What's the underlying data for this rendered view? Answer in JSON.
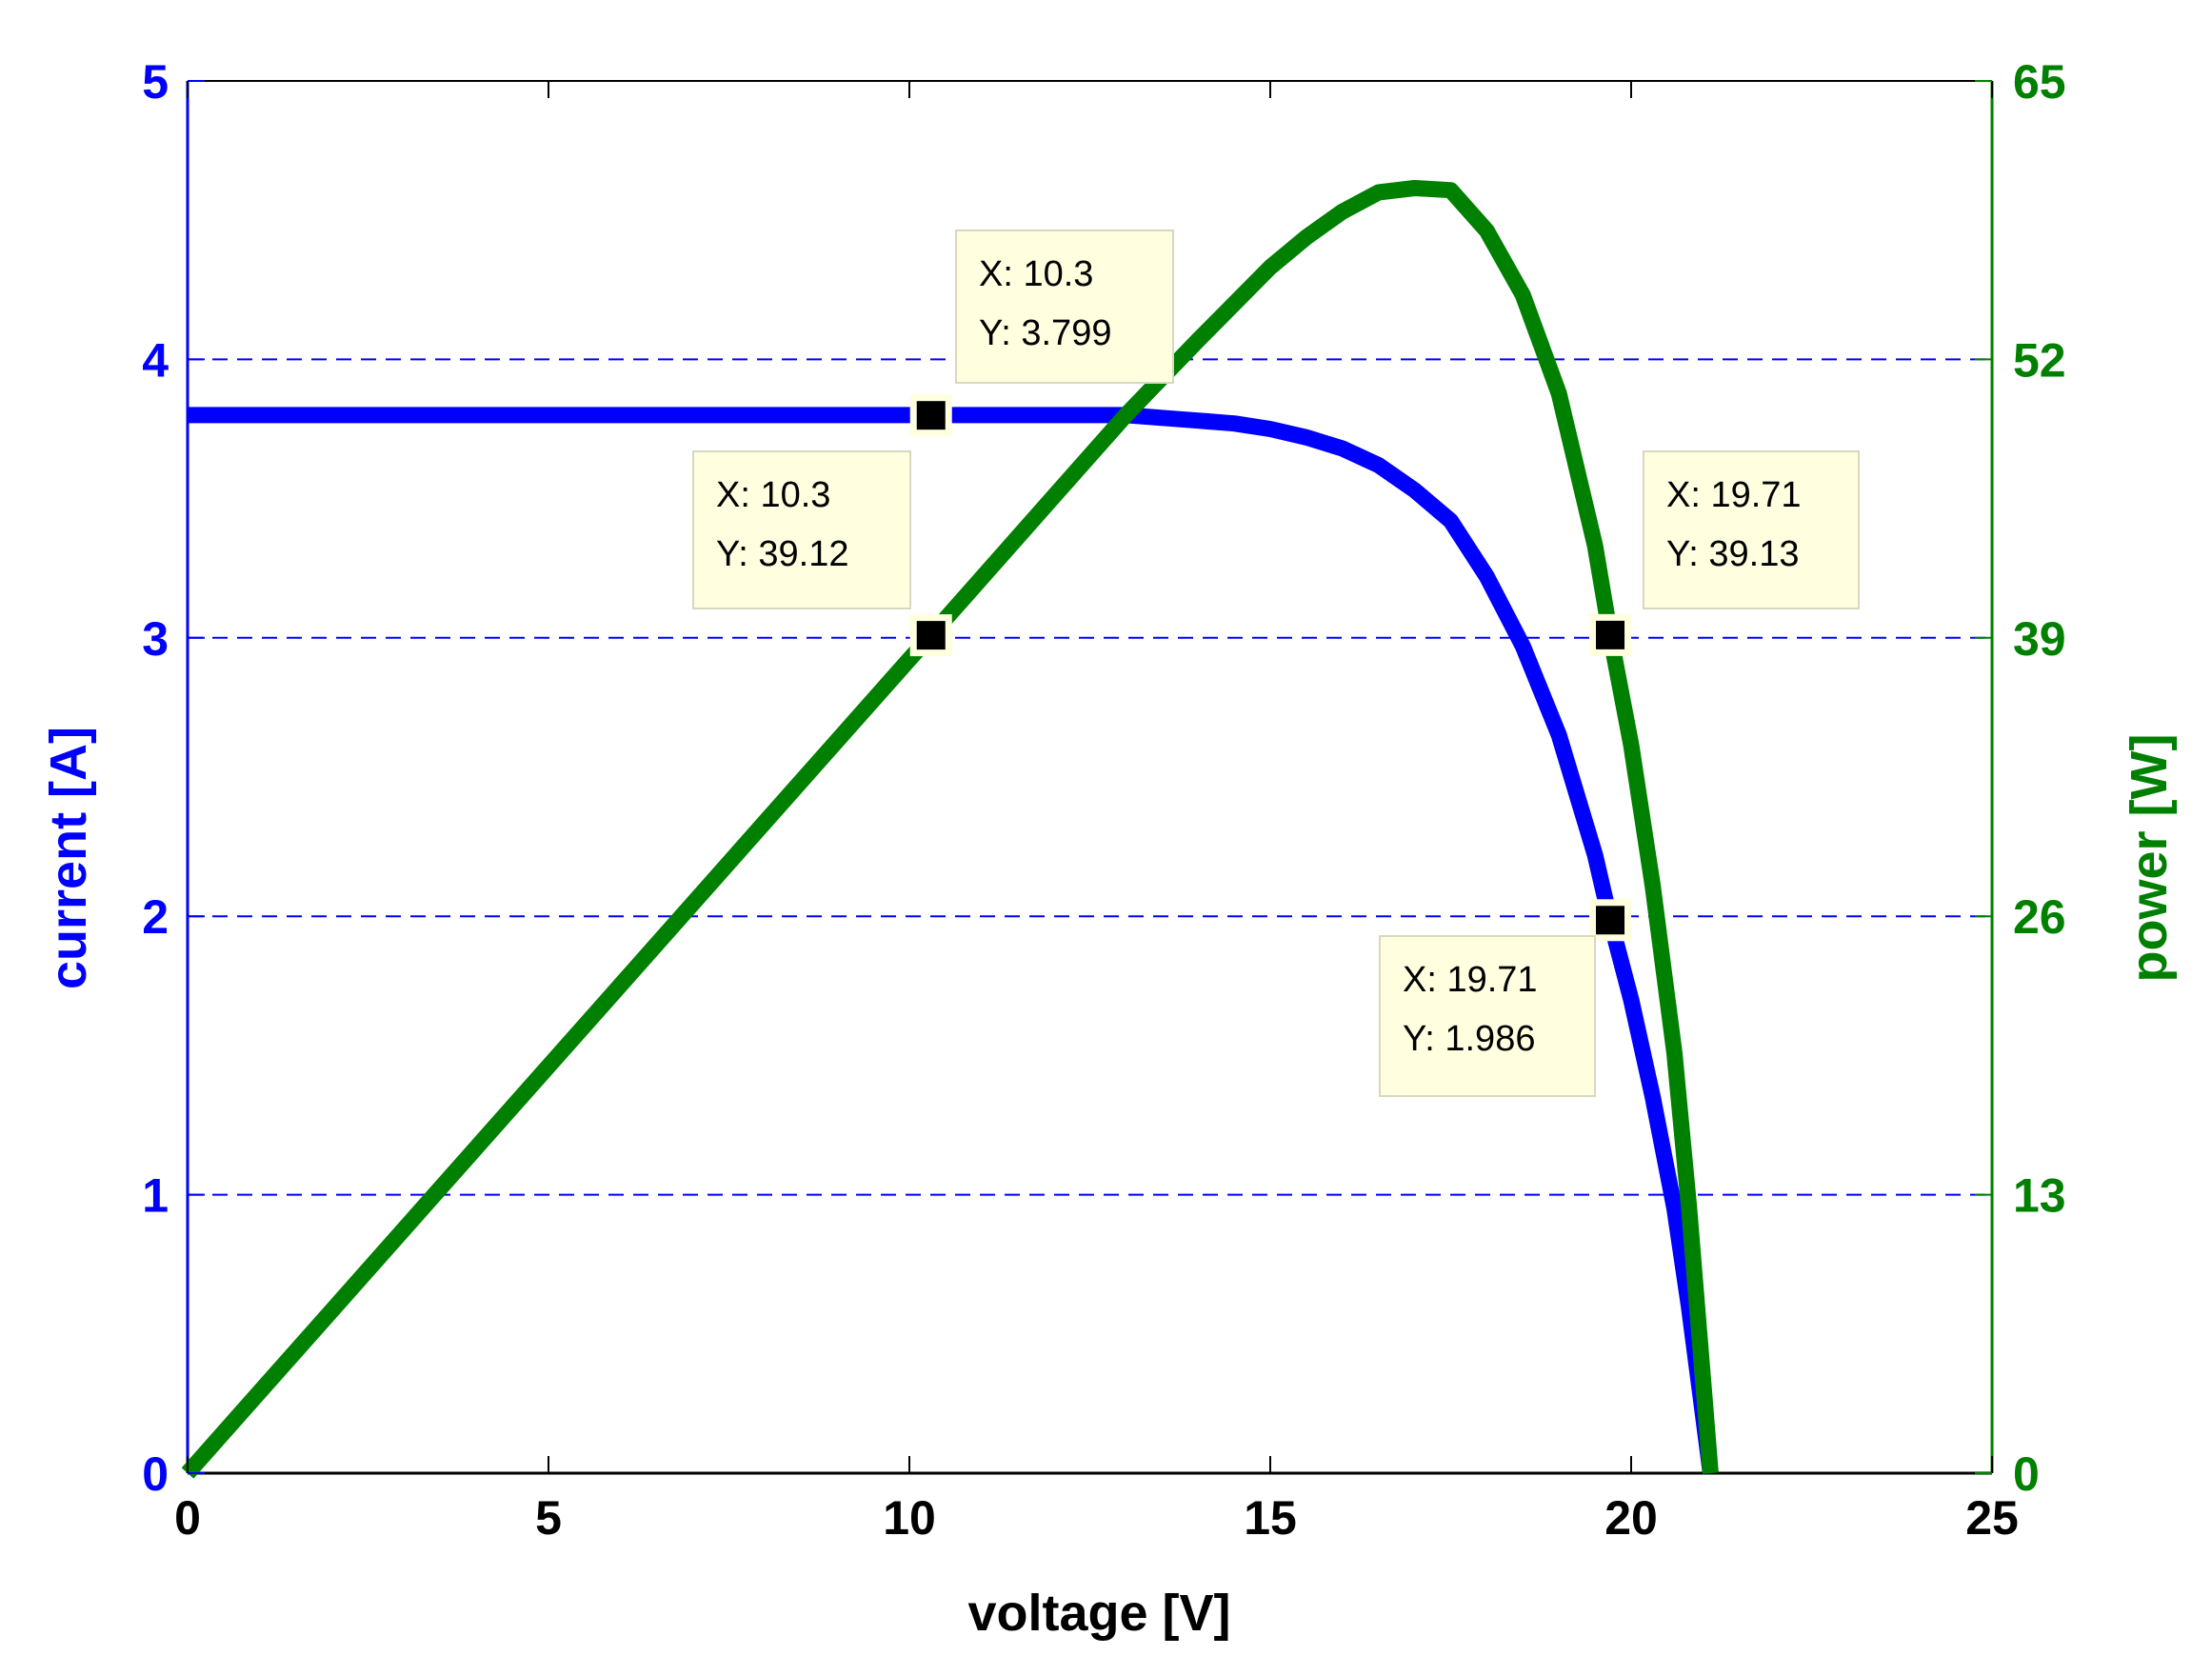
{
  "chart_data": {
    "type": "line",
    "title": "",
    "xlabel": "voltage [V]",
    "xlim": [
      0,
      25
    ],
    "x_ticks": [
      0,
      5,
      10,
      15,
      20,
      25
    ],
    "x_tick_labels": [
      "0",
      "5",
      "10",
      "15",
      "20",
      "25"
    ],
    "y_left": {
      "label": "current [A]",
      "lim": [
        0,
        5
      ],
      "ticks": [
        0,
        1,
        2,
        3,
        4,
        5
      ],
      "tick_labels": [
        "0",
        "1",
        "2",
        "3",
        "4",
        "5"
      ],
      "color": "#0000ff"
    },
    "y_right": {
      "label": "power [W]",
      "lim": [
        0,
        65
      ],
      "ticks": [
        0,
        13,
        26,
        39,
        52,
        65
      ],
      "tick_labels": [
        "0",
        "13",
        "26",
        "39",
        "52",
        "65"
      ],
      "color": "#008000"
    },
    "grid": "dashed horizontal at left-axis ticks",
    "series": [
      {
        "axis": "left",
        "color": "#0000ff",
        "x": [
          0,
          2,
          4,
          6,
          8,
          10,
          12,
          13,
          13.5,
          14,
          14.5,
          15,
          15.5,
          16,
          16.5,
          17,
          17.5,
          18,
          18.5,
          19,
          19.5,
          19.71,
          20,
          20.3,
          20.6,
          20.8,
          21,
          21.1
        ],
        "y": [
          3.8,
          3.8,
          3.8,
          3.8,
          3.8,
          3.8,
          3.8,
          3.8,
          3.79,
          3.78,
          3.77,
          3.75,
          3.72,
          3.68,
          3.62,
          3.53,
          3.42,
          3.22,
          2.97,
          2.65,
          2.22,
          1.986,
          1.7,
          1.35,
          0.95,
          0.6,
          0.2,
          0.0
        ]
      },
      {
        "axis": "right",
        "color": "#008000",
        "x": [
          0,
          2,
          4,
          6,
          8,
          10,
          10.3,
          12,
          13,
          14,
          15,
          15.5,
          16,
          16.5,
          17,
          17.5,
          18,
          18.5,
          19,
          19.5,
          19.71,
          20,
          20.3,
          20.6,
          20.8,
          21,
          21.1
        ],
        "y": [
          0,
          7.6,
          15.2,
          22.8,
          30.4,
          38.0,
          39.12,
          45.6,
          49.4,
          52.9,
          56.3,
          57.7,
          58.9,
          59.8,
          60.0,
          59.9,
          58.0,
          55.0,
          50.4,
          43.3,
          39.13,
          34.0,
          27.4,
          19.6,
          12.5,
          4.2,
          0.0
        ]
      }
    ],
    "datatips": [
      {
        "axis": "left",
        "x": 10.3,
        "y": 3.799,
        "lines": [
          "X: 10.3",
          "Y: 3.799"
        ]
      },
      {
        "axis": "right",
        "x": 10.3,
        "y": 39.12,
        "lines": [
          "X: 10.3",
          "Y: 39.12"
        ]
      },
      {
        "axis": "right",
        "x": 19.71,
        "y": 39.13,
        "lines": [
          "X: 19.71",
          "Y: 39.13"
        ]
      },
      {
        "axis": "left",
        "x": 19.71,
        "y": 1.986,
        "lines": [
          "X: 19.71",
          "Y: 1.986"
        ]
      }
    ]
  }
}
